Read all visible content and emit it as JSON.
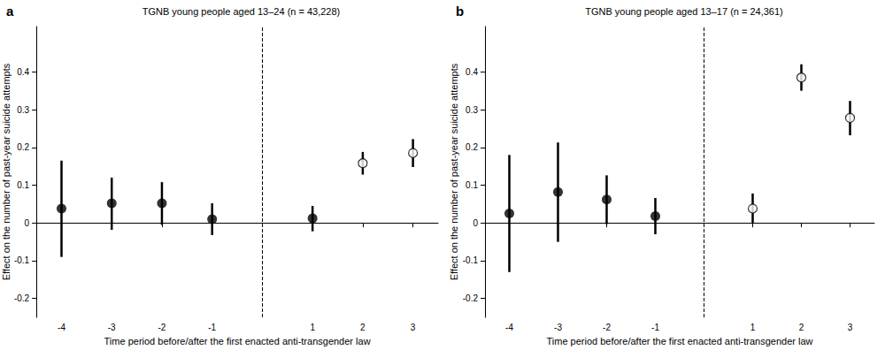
{
  "chart_data": [
    {
      "type": "scatter",
      "panel_label": "a",
      "title": "TGNB young people aged 13–24 (n = 43,228)",
      "x_label": "Time period before/after the first enacted anti-transgender law",
      "y_label": "Effect on the number of past-year suicide attempts",
      "categories": [
        "-4",
        "-3",
        "-2",
        "-1",
        null,
        "1",
        "2",
        "3"
      ],
      "series": [
        {
          "marker": "filled",
          "color": "#000000",
          "values": [
            0.038,
            0.052,
            0.052,
            0.01,
            null,
            0.012,
            null,
            null
          ],
          "error_low": [
            -0.09,
            -0.018,
            -0.005,
            -0.032,
            null,
            -0.022,
            null,
            null
          ],
          "error_high": [
            0.165,
            0.12,
            0.108,
            0.052,
            null,
            0.045,
            null,
            null
          ]
        },
        {
          "marker": "open",
          "color": "#000000",
          "values": [
            null,
            null,
            null,
            null,
            null,
            null,
            0.158,
            0.185
          ],
          "error_low": [
            null,
            null,
            null,
            null,
            null,
            null,
            0.128,
            0.148
          ],
          "error_high": [
            null,
            null,
            null,
            null,
            null,
            null,
            0.188,
            0.222
          ]
        }
      ],
      "hline": 0,
      "ylim": [
        -0.25,
        0.52
      ],
      "yticks": [
        -0.2,
        -0.1,
        0,
        0.1,
        0.2,
        0.3,
        0.4
      ],
      "grid": false
    },
    {
      "type": "scatter",
      "panel_label": "b",
      "title": "TGNB young people aged 13–17 (n = 24,361)",
      "x_label": "Time period before/after the first enacted anti-transgender law",
      "y_label": "Effect on the number of past-year suicide attempts",
      "categories": [
        "-4",
        "-3",
        "-2",
        "-1",
        null,
        "1",
        "2",
        "3"
      ],
      "series": [
        {
          "marker": "filled",
          "color": "#000000",
          "values": [
            0.025,
            0.082,
            0.062,
            0.018,
            null,
            null,
            null,
            null
          ],
          "error_low": [
            -0.13,
            -0.05,
            -0.003,
            -0.03,
            null,
            null,
            null,
            null
          ],
          "error_high": [
            0.18,
            0.213,
            0.126,
            0.066,
            null,
            null,
            null,
            null
          ]
        },
        {
          "marker": "open",
          "color": "#000000",
          "values": [
            null,
            null,
            null,
            null,
            null,
            0.038,
            0.385,
            0.278
          ],
          "error_low": [
            null,
            null,
            null,
            null,
            null,
            0.0,
            0.35,
            0.232
          ],
          "error_high": [
            null,
            null,
            null,
            null,
            null,
            0.078,
            0.42,
            0.323
          ]
        }
      ],
      "hline": 0,
      "ylim": [
        -0.25,
        0.52
      ],
      "yticks": [
        -0.2,
        -0.1,
        0,
        0.1,
        0.2,
        0.3,
        0.4
      ],
      "grid": false
    }
  ]
}
